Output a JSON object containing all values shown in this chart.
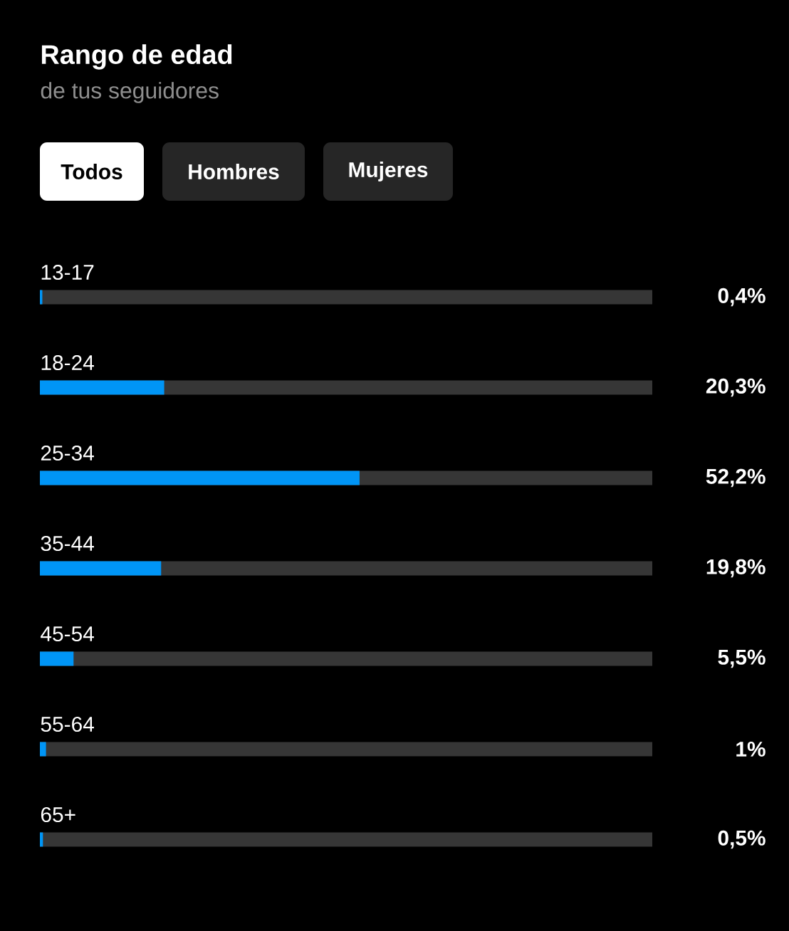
{
  "chart_data": {
    "type": "bar",
    "orientation": "horizontal",
    "title": "Rango de edad",
    "subtitle": "de tus seguidores",
    "annotations": [
      "Todos",
      "Hombres",
      "Mujeres"
    ],
    "categories": [
      "13-17",
      "18-24",
      "25-34",
      "35-44",
      "45-54",
      "55-64",
      "65+"
    ],
    "values": [
      0.4,
      20.3,
      52.2,
      19.8,
      5.5,
      1,
      0.5
    ],
    "value_labels": [
      "0,4%",
      "20,3%",
      "52,2%",
      "19,8%",
      "5,5%",
      "1%",
      "0,5%"
    ],
    "color": "#0095f6",
    "xlim": [
      0,
      100
    ]
  }
}
